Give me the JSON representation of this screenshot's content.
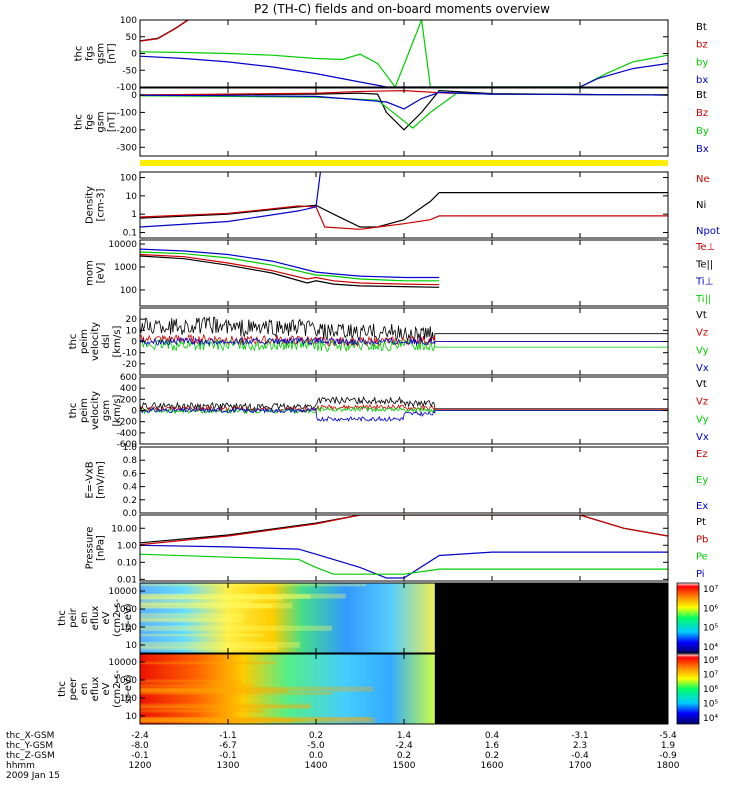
{
  "chart_data": {
    "type": "line",
    "title": "P2 (TH-C) fields and on-board moments overview",
    "time_axis": {
      "range": [
        1200,
        1800
      ],
      "rows": [
        {
          "label": "thc_X-GSM",
          "values": [
            "-2.4",
            "-1.1",
            "0.2",
            "1.4",
            "0.4",
            "-3.1",
            "-5.4"
          ]
        },
        {
          "label": "thc_Y-GSM",
          "values": [
            "-8.0",
            "-6.7",
            "-5.0",
            "-2.4",
            "1.6",
            "2.3",
            "1.9"
          ]
        },
        {
          "label": "thc_Z-GSM",
          "values": [
            "-0.1",
            "-0.1",
            "0.0",
            "0.2",
            "0.2",
            "-0.4",
            "-0.9"
          ]
        },
        {
          "label": "hhmm",
          "values": [
            "1200",
            "1300",
            "1400",
            "1500",
            "1600",
            "1700",
            "1800"
          ]
        }
      ],
      "date": "2009 Jan 15"
    },
    "panels": [
      {
        "id": "fgs",
        "ylabel": [
          "thc",
          "fgs",
          "gsm",
          "[nT]"
        ],
        "yticks": [
          "100",
          "50",
          "0",
          "-50",
          "-100"
        ],
        "ylim": [
          -100,
          100
        ],
        "legend": [
          {
            "name": "Bt",
            "color": "#000000"
          },
          {
            "name": "bz",
            "color": "#cc0000"
          },
          {
            "name": "by",
            "color": "#00cc00"
          },
          {
            "name": "bx",
            "color": "#0000cc"
          }
        ],
        "series": [
          {
            "name": "Bt",
            "color": "#000000",
            "x": [
              1200,
              1220,
              1240,
              1260
            ],
            "y": [
              38,
              45,
              75,
              110
            ]
          },
          {
            "name": "bz",
            "color": "#cc0000",
            "x": [
              1200,
              1220,
              1240,
              1260
            ],
            "y": [
              37,
              44,
              74,
              109
            ]
          },
          {
            "name": "by",
            "color": "#00cc00",
            "x": [
              1200,
              1250,
              1300,
              1350,
              1400,
              1430,
              1450,
              1470,
              1490,
              1520,
              1530,
              1700,
              1730,
              1760,
              1800
            ],
            "y": [
              5,
              3,
              0,
              -5,
              -15,
              -18,
              -2,
              -30,
              -100,
              100,
              -100,
              -100,
              -60,
              -25,
              -5
            ]
          },
          {
            "name": "bx",
            "color": "#0000cc",
            "x": [
              1200,
              1250,
              1300,
              1350,
              1400,
              1450,
              1480,
              1700,
              1720,
              1760,
              1800
            ],
            "y": [
              -8,
              -15,
              -25,
              -40,
              -60,
              -85,
              -100,
              -100,
              -75,
              -45,
              -30
            ]
          }
        ]
      },
      {
        "id": "fge",
        "ylabel": [
          "thc",
          "fge",
          "gsm",
          "[nT]"
        ],
        "yticks": [
          "0",
          "-100",
          "-200",
          "-300"
        ],
        "ylim": [
          -350,
          40
        ],
        "legend": [
          {
            "name": "Bt",
            "color": "#000000"
          },
          {
            "name": "Bz",
            "color": "#cc0000"
          },
          {
            "name": "By",
            "color": "#00cc00"
          },
          {
            "name": "Bx",
            "color": "#0000cc"
          }
        ],
        "series": [
          {
            "name": "Bt",
            "color": "#000000",
            "x": [
              1200,
              1300,
              1400,
              1450,
              1470,
              1480,
              1500,
              1520,
              1540,
              1600,
              1700,
              1800
            ],
            "y": [
              0,
              2,
              5,
              10,
              5,
              -100,
              -200,
              -100,
              25,
              8,
              3,
              0
            ]
          },
          {
            "name": "Bz",
            "color": "#cc0000",
            "x": [
              1200,
              1300,
              1400,
              1450,
              1500,
              1550,
              1600,
              1700,
              1800
            ],
            "y": [
              0,
              5,
              10,
              20,
              25,
              10,
              5,
              3,
              0
            ]
          },
          {
            "name": "By",
            "color": "#00cc00",
            "x": [
              1200,
              1300,
              1400,
              1470,
              1490,
              1510,
              1530,
              1560,
              1600,
              1700,
              1800
            ],
            "y": [
              -5,
              -8,
              -12,
              -30,
              -110,
              -190,
              -100,
              10,
              5,
              3,
              0
            ]
          },
          {
            "name": "Bx",
            "color": "#0000cc",
            "x": [
              1200,
              1300,
              1400,
              1480,
              1500,
              1520,
              1540,
              1600,
              1700,
              1800
            ],
            "y": [
              -2,
              -4,
              -8,
              -40,
              -80,
              -20,
              15,
              5,
              3,
              0
            ]
          }
        ]
      },
      {
        "id": "mode_bar",
        "color": "#ffee00"
      },
      {
        "id": "density",
        "ylabel": [
          "Density",
          "[cm-3]"
        ],
        "yticks": [
          "100",
          "10",
          "1",
          "0.1"
        ],
        "log": true,
        "ylim": [
          0.05,
          200
        ],
        "legend": [
          {
            "name": "Ne",
            "color": "#cc0000"
          },
          {
            "name": "Ni",
            "color": "#000000"
          },
          {
            "name": "Npot",
            "color": "#0000cc"
          }
        ],
        "series": [
          {
            "name": "Ni",
            "color": "#000000",
            "x": [
              1200,
              1300,
              1380,
              1400,
              1420,
              1450,
              1470,
              1500,
              1530,
              1540,
              1800
            ],
            "y": [
              0.6,
              1.0,
              2.5,
              3.0,
              1.0,
              0.2,
              0.2,
              0.5,
              5,
              15,
              15
            ]
          },
          {
            "name": "Ne",
            "color": "#cc0000",
            "x": [
              1200,
              1300,
              1380,
              1400,
              1410,
              1450,
              1500,
              1530,
              1540,
              1800
            ],
            "y": [
              0.7,
              1.1,
              2.8,
              2.5,
              0.2,
              0.15,
              0.3,
              0.5,
              0.8,
              0.8
            ]
          },
          {
            "name": "Npot",
            "color": "#0000cc",
            "x": [
              1200,
              1300,
              1380,
              1400,
              1405
            ],
            "y": [
              0.2,
              0.4,
              1.5,
              2.5,
              200
            ]
          }
        ]
      },
      {
        "id": "temp",
        "ylabel": [
          "mom",
          "[eV]"
        ],
        "yticks": [
          "10000",
          "1000",
          "100"
        ],
        "log": true,
        "ylim": [
          20,
          15000
        ],
        "legend": [
          {
            "name": "Te⊥",
            "color": "#cc0000"
          },
          {
            "name": "Te||",
            "color": "#000000"
          },
          {
            "name": "Ti⊥",
            "color": "#0000cc"
          },
          {
            "name": "Ti||",
            "color": "#00cc00"
          }
        ],
        "series": [
          {
            "name": "Ti⊥",
            "color": "#0000cc",
            "x": [
              1200,
              1250,
              1300,
              1350,
              1400,
              1420,
              1450,
              1500,
              1540
            ],
            "y": [
              6000,
              5000,
              3500,
              1800,
              600,
              500,
              400,
              350,
              350
            ]
          },
          {
            "name": "Ti||",
            "color": "#00cc00",
            "x": [
              1200,
              1250,
              1300,
              1350,
              1400,
              1420,
              1450,
              1500,
              1540
            ],
            "y": [
              4500,
              3800,
              2500,
              1200,
              450,
              400,
              300,
              250,
              250
            ]
          },
          {
            "name": "Te⊥",
            "color": "#cc0000",
            "x": [
              1200,
              1250,
              1300,
              1350,
              1390,
              1400,
              1420,
              1450,
              1500,
              1540
            ],
            "y": [
              3500,
              2800,
              1500,
              700,
              300,
              350,
              250,
              200,
              180,
              170
            ]
          },
          {
            "name": "Te||",
            "color": "#000000",
            "x": [
              1200,
              1250,
              1300,
              1350,
              1390,
              1400,
              1420,
              1450,
              1500,
              1540
            ],
            "y": [
              3000,
              2300,
              1200,
              550,
              200,
              250,
              180,
              150,
              140,
              130
            ]
          }
        ]
      },
      {
        "id": "velocity_dsl",
        "ylabel": [
          "thc",
          "peim",
          "velocity",
          "dsl",
          "[km/s]"
        ],
        "yticks": [
          "20",
          "10",
          "0",
          "-10",
          "-20"
        ],
        "ylim": [
          -30,
          30
        ],
        "legend": [
          {
            "name": "Vt",
            "color": "#000000"
          },
          {
            "name": "Vz",
            "color": "#cc0000"
          },
          {
            "name": "Vy",
            "color": "#00cc00"
          },
          {
            "name": "Vx",
            "color": "#0000cc"
          }
        ],
        "series": [
          {
            "name": "Vt",
            "color": "#000000",
            "center": [
              14,
              12,
              8,
              6,
              6,
              7,
              7
            ],
            "spread": 8
          },
          {
            "name": "Vz",
            "color": "#cc0000",
            "center": [
              2,
              1,
              0,
              1,
              0,
              0,
              0
            ],
            "spread": 4
          },
          {
            "name": "Vy",
            "color": "#00cc00",
            "center": [
              -3,
              -3,
              -4,
              -3,
              -4,
              -5,
              -5
            ],
            "spread": 5
          },
          {
            "name": "Vx",
            "color": "#0000cc",
            "center": [
              0,
              0,
              0,
              0,
              0,
              0,
              0
            ],
            "spread": 3
          }
        ]
      },
      {
        "id": "velocity_gsm",
        "ylabel": [
          "thc",
          "peim",
          "velocity",
          "gsm",
          "[km/s]"
        ],
        "yticks": [
          "600",
          "400",
          "200",
          "0",
          "-200",
          "-400",
          "-600"
        ],
        "ylim": [
          -600,
          600
        ],
        "legend": [
          {
            "name": "Vt",
            "color": "#000000"
          },
          {
            "name": "Vz",
            "color": "#cc0000"
          },
          {
            "name": "Vy",
            "color": "#00cc00"
          },
          {
            "name": "Vx",
            "color": "#0000cc"
          }
        ],
        "series": [
          {
            "name": "Vt",
            "color": "#000000",
            "center": [
              80,
              70,
              180,
              120,
              30,
              30,
              30
            ],
            "spread": 60
          },
          {
            "name": "Vz",
            "color": "#cc0000",
            "center": [
              30,
              20,
              60,
              40,
              20,
              20,
              20
            ],
            "spread": 40
          },
          {
            "name": "Vy",
            "color": "#00cc00",
            "center": [
              -10,
              -10,
              20,
              10,
              0,
              0,
              0
            ],
            "spread": 40
          },
          {
            "name": "Vx",
            "color": "#0000cc",
            "center": [
              0,
              0,
              -150,
              -60,
              0,
              0,
              0
            ],
            "spread": 40
          }
        ]
      },
      {
        "id": "efield",
        "ylabel": [
          "E=-VxB",
          "[mV/m]"
        ],
        "yticks": [
          "1.0",
          "0.8",
          "0.6",
          "0.4",
          "0.2",
          "0.0"
        ],
        "ylim": [
          0,
          1
        ],
        "legend": [
          {
            "name": "Ez",
            "color": "#cc0000"
          },
          {
            "name": "Ey",
            "color": "#00cc00"
          },
          {
            "name": "Ex",
            "color": "#0000cc"
          }
        ],
        "series": []
      },
      {
        "id": "pressure",
        "ylabel": [
          "Pressure",
          "[nPa]"
        ],
        "yticks": [
          "10.00",
          "1.00",
          "0.10",
          "0.01"
        ],
        "log": true,
        "ylim": [
          0.008,
          60
        ],
        "legend": [
          {
            "name": "Pt",
            "color": "#000000"
          },
          {
            "name": "Pb",
            "color": "#cc0000"
          },
          {
            "name": "Pe",
            "color": "#00cc00"
          },
          {
            "name": "Pi",
            "color": "#0000cc"
          }
        ],
        "series": [
          {
            "name": "Pt",
            "color": "#000000",
            "x": [
              1200,
              1300,
              1400,
              1450,
              1700,
              1750,
              1800
            ],
            "y": [
              1.4,
              4,
              20,
              60,
              60,
              10,
              3.5
            ]
          },
          {
            "name": "Pb",
            "color": "#cc0000",
            "x": [
              1200,
              1300,
              1400,
              1450,
              1700,
              1750,
              1800
            ],
            "y": [
              1.1,
              3.5,
              18,
              60,
              60,
              10,
              3.5
            ]
          },
          {
            "name": "Pi",
            "color": "#0000cc",
            "x": [
              1200,
              1300,
              1380,
              1400,
              1450,
              1480,
              1500,
              1540,
              1600,
              1800
            ],
            "y": [
              1.0,
              0.8,
              0.6,
              0.3,
              0.05,
              0.012,
              0.012,
              0.25,
              0.4,
              0.4
            ]
          },
          {
            "name": "Pe",
            "color": "#00cc00",
            "x": [
              1200,
              1300,
              1380,
              1400,
              1420,
              1500,
              1540,
              1800
            ],
            "y": [
              0.3,
              0.2,
              0.15,
              0.05,
              0.02,
              0.02,
              0.04,
              0.04
            ]
          }
        ]
      },
      {
        "id": "ion_spec",
        "ylabel": [
          "thc",
          "peir",
          "en",
          "eflux",
          "eV",
          "(cm2-s-",
          "sr-eV)"
        ],
        "yticks": [
          "10000",
          "1000",
          "100",
          "10"
        ],
        "colorbar_ticks": [
          "10⁷",
          "10⁶",
          "10⁵",
          "10⁴"
        ]
      },
      {
        "id": "elec_spec",
        "ylabel": [
          "thc",
          "peer",
          "en",
          "eflux",
          "eV",
          "(cm2-s-",
          "sr-eV)"
        ],
        "yticks": [
          "10000",
          "1000",
          "100",
          "10"
        ],
        "colorbar_ticks": [
          "10⁸",
          "10⁷",
          "10⁶",
          "10⁵",
          "10⁴"
        ]
      }
    ]
  }
}
